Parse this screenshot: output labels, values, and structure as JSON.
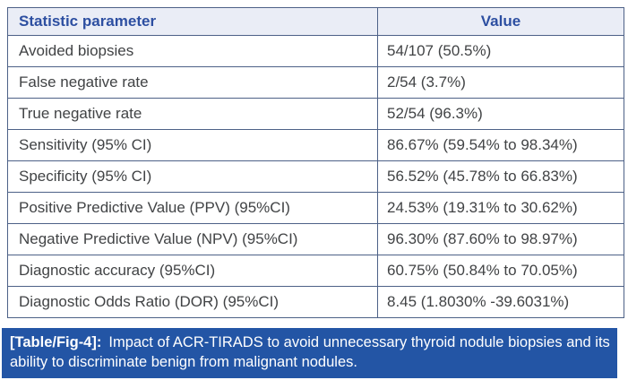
{
  "table": {
    "headers": [
      "Statistic parameter",
      "Value"
    ],
    "rows": [
      {
        "parameter": "Avoided biopsies",
        "value": "54/107 (50.5%)"
      },
      {
        "parameter": "False negative rate",
        "value": "2/54 (3.7%)"
      },
      {
        "parameter": "True negative rate",
        "value": "52/54 (96.3%)"
      },
      {
        "parameter": "Sensitivity (95% CI)",
        "value": "86.67% (59.54% to 98.34%)"
      },
      {
        "parameter": "Specificity (95% CI)",
        "value": "56.52% (45.78% to 66.83%)"
      },
      {
        "parameter": "Positive Predictive Value (PPV) (95%CI)",
        "value": "24.53% (19.31% to 30.62%)"
      },
      {
        "parameter": "Negative Predictive Value (NPV) (95%CI)",
        "value": "96.30% (87.60% to 98.97%)"
      },
      {
        "parameter": "Diagnostic accuracy (95%CI)",
        "value": "60.75% (50.84% to 70.05%)"
      },
      {
        "parameter": "Diagnostic Odds Ratio (DOR) (95%CI)",
        "value": "8.45 (1.8030% -39.6031%)"
      }
    ]
  },
  "caption": {
    "label": "[Table/Fig-4]:",
    "text": "Impact of ACR-TIRADS to avoid unnecessary thyroid nodule biopsies and its ability to discriminate benign from malignant nodules."
  },
  "colors": {
    "caption_bg": "#2355a5",
    "header_text": "#2d4fa1",
    "header_bg": "#eaedf6",
    "border": "#4d6187",
    "body_text": "#414345",
    "page_bg": "#ffffff"
  }
}
